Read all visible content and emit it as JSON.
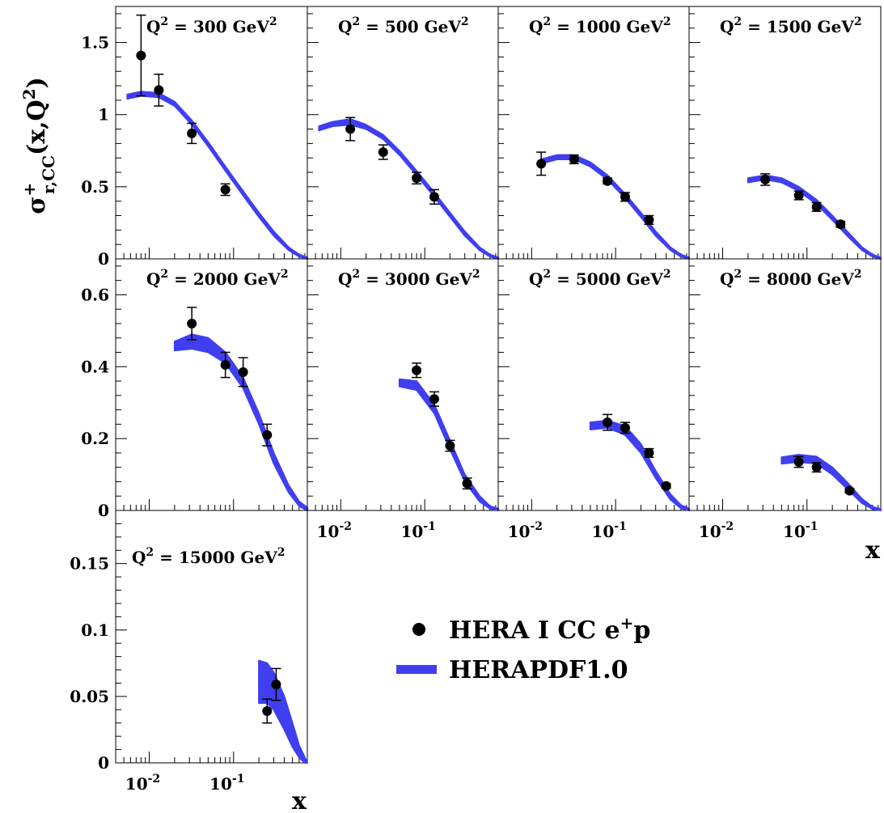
{
  "chart_data": [
    {
      "type": "scatter",
      "title": "Q<sup>2</sup> = 300 GeV<sup>2</sup>",
      "title_parts": {
        "pre": "Q",
        "sup1": "2",
        "mid": " = 300 GeV",
        "sup2": "2"
      },
      "xscale": "log",
      "xlim": [
        0.004,
        0.75
      ],
      "ylim": [
        0,
        1.75
      ],
      "yticks": [
        "0",
        "0.5",
        "1",
        "1.5"
      ],
      "ytick_values": [
        0,
        0.5,
        1,
        1.5
      ],
      "points": [
        {
          "x": 0.008,
          "y": 1.41,
          "err": 0.28
        },
        {
          "x": 0.013,
          "y": 1.17,
          "err": 0.11
        },
        {
          "x": 0.032,
          "y": 0.87,
          "err": 0.07
        },
        {
          "x": 0.08,
          "y": 0.48,
          "err": 0.04
        }
      ],
      "band": {
        "x": [
          0.0055,
          0.008,
          0.013,
          0.02,
          0.032,
          0.05,
          0.08,
          0.13,
          0.2,
          0.3,
          0.45,
          0.6,
          0.75
        ],
        "lo": [
          1.11,
          1.13,
          1.12,
          1.06,
          0.93,
          0.78,
          0.61,
          0.44,
          0.29,
          0.16,
          0.06,
          0.015,
          0.0
        ],
        "hi": [
          1.14,
          1.16,
          1.15,
          1.09,
          0.96,
          0.81,
          0.64,
          0.47,
          0.32,
          0.19,
          0.08,
          0.03,
          0.01
        ]
      }
    },
    {
      "type": "scatter",
      "title_parts": {
        "pre": "Q",
        "sup1": "2",
        "mid": " = 500 GeV",
        "sup2": "2"
      },
      "xscale": "log",
      "xlim": [
        0.004,
        0.75
      ],
      "ylim": [
        0,
        1.75
      ],
      "points": [
        {
          "x": 0.013,
          "y": 0.9,
          "err": 0.08
        },
        {
          "x": 0.032,
          "y": 0.74,
          "err": 0.05
        },
        {
          "x": 0.08,
          "y": 0.56,
          "err": 0.04
        },
        {
          "x": 0.13,
          "y": 0.43,
          "err": 0.05
        }
      ],
      "band": {
        "x": [
          0.0055,
          0.008,
          0.013,
          0.02,
          0.032,
          0.05,
          0.08,
          0.13,
          0.2,
          0.3,
          0.45,
          0.6,
          0.75
        ],
        "lo": [
          0.89,
          0.92,
          0.93,
          0.9,
          0.83,
          0.72,
          0.58,
          0.43,
          0.29,
          0.16,
          0.06,
          0.015,
          0.0
        ],
        "hi": [
          0.92,
          0.95,
          0.97,
          0.93,
          0.86,
          0.75,
          0.61,
          0.46,
          0.32,
          0.19,
          0.08,
          0.03,
          0.01
        ]
      }
    },
    {
      "type": "scatter",
      "title_parts": {
        "pre": "Q",
        "sup1": "2",
        "mid": " = 1000 GeV",
        "sup2": "2"
      },
      "xscale": "log",
      "xlim": [
        0.004,
        0.75
      ],
      "ylim": [
        0,
        1.75
      ],
      "points": [
        {
          "x": 0.013,
          "y": 0.66,
          "err": 0.08
        },
        {
          "x": 0.032,
          "y": 0.69,
          "err": 0.03
        },
        {
          "x": 0.08,
          "y": 0.54,
          "err": 0.02
        },
        {
          "x": 0.13,
          "y": 0.43,
          "err": 0.03
        },
        {
          "x": 0.25,
          "y": 0.27,
          "err": 0.03
        }
      ],
      "band": {
        "x": [
          0.013,
          0.02,
          0.032,
          0.05,
          0.08,
          0.13,
          0.2,
          0.3,
          0.45,
          0.6,
          0.75
        ],
        "lo": [
          0.66,
          0.69,
          0.69,
          0.64,
          0.55,
          0.42,
          0.29,
          0.16,
          0.06,
          0.015,
          0.0
        ],
        "hi": [
          0.69,
          0.72,
          0.72,
          0.67,
          0.58,
          0.45,
          0.32,
          0.19,
          0.08,
          0.03,
          0.01
        ]
      }
    },
    {
      "type": "scatter",
      "title_parts": {
        "pre": "Q",
        "sup1": "2",
        "mid": " = 1500 GeV",
        "sup2": "2"
      },
      "xscale": "log",
      "xlim": [
        0.004,
        0.75
      ],
      "ylim": [
        0,
        1.75
      ],
      "points": [
        {
          "x": 0.032,
          "y": 0.55,
          "err": 0.04
        },
        {
          "x": 0.08,
          "y": 0.44,
          "err": 0.03
        },
        {
          "x": 0.13,
          "y": 0.36,
          "err": 0.03
        },
        {
          "x": 0.25,
          "y": 0.24,
          "err": 0.02
        }
      ],
      "band": {
        "x": [
          0.02,
          0.032,
          0.05,
          0.08,
          0.13,
          0.2,
          0.3,
          0.45,
          0.6,
          0.75
        ],
        "lo": [
          0.53,
          0.55,
          0.53,
          0.47,
          0.38,
          0.27,
          0.16,
          0.06,
          0.015,
          0.0
        ],
        "hi": [
          0.56,
          0.58,
          0.56,
          0.5,
          0.41,
          0.3,
          0.19,
          0.08,
          0.03,
          0.01
        ]
      }
    },
    {
      "type": "scatter",
      "title_parts": {
        "pre": "Q",
        "sup1": "2",
        "mid": " = 2000 GeV",
        "sup2": "2"
      },
      "xscale": "log",
      "xlim": [
        0.004,
        0.75
      ],
      "ylim": [
        0,
        0.7
      ],
      "yticks": [
        "0",
        "0.2",
        "0.4",
        "0.6"
      ],
      "ytick_values": [
        0,
        0.2,
        0.4,
        0.6
      ],
      "points": [
        {
          "x": 0.032,
          "y": 0.52,
          "err": 0.045
        },
        {
          "x": 0.08,
          "y": 0.405,
          "err": 0.035
        },
        {
          "x": 0.13,
          "y": 0.385,
          "err": 0.04
        },
        {
          "x": 0.25,
          "y": 0.21,
          "err": 0.03
        }
      ],
      "band": {
        "x": [
          0.02,
          0.032,
          0.05,
          0.08,
          0.13,
          0.2,
          0.3,
          0.45,
          0.6,
          0.75
        ],
        "lo": [
          0.445,
          0.45,
          0.44,
          0.41,
          0.34,
          0.24,
          0.13,
          0.05,
          0.012,
          0.0
        ],
        "hi": [
          0.47,
          0.49,
          0.48,
          0.44,
          0.37,
          0.27,
          0.16,
          0.07,
          0.025,
          0.008
        ]
      }
    },
    {
      "type": "scatter",
      "title_parts": {
        "pre": "Q",
        "sup1": "2",
        "mid": " = 3000 GeV",
        "sup2": "2"
      },
      "xscale": "log",
      "xlim": [
        0.004,
        0.75
      ],
      "ylim": [
        0,
        0.7
      ],
      "points": [
        {
          "x": 0.08,
          "y": 0.39,
          "err": 0.02
        },
        {
          "x": 0.13,
          "y": 0.31,
          "err": 0.02
        },
        {
          "x": 0.2,
          "y": 0.18,
          "err": 0.015
        },
        {
          "x": 0.32,
          "y": 0.075,
          "err": 0.015
        }
      ],
      "band": {
        "x": [
          0.05,
          0.08,
          0.13,
          0.2,
          0.3,
          0.45,
          0.6,
          0.75
        ],
        "lo": [
          0.345,
          0.335,
          0.27,
          0.17,
          0.08,
          0.025,
          0.005,
          0.0
        ],
        "hi": [
          0.365,
          0.36,
          0.295,
          0.195,
          0.1,
          0.04,
          0.012,
          0.005
        ]
      }
    },
    {
      "type": "scatter",
      "title_parts": {
        "pre": "Q",
        "sup1": "2",
        "mid": " = 5000 GeV",
        "sup2": "2"
      },
      "xscale": "log",
      "xlim": [
        0.004,
        0.75
      ],
      "ylim": [
        0,
        0.7
      ],
      "points": [
        {
          "x": 0.08,
          "y": 0.245,
          "err": 0.022
        },
        {
          "x": 0.13,
          "y": 0.23,
          "err": 0.015
        },
        {
          "x": 0.25,
          "y": 0.16,
          "err": 0.012
        },
        {
          "x": 0.4,
          "y": 0.068,
          "err": 0.006
        }
      ],
      "band": {
        "x": [
          0.05,
          0.08,
          0.13,
          0.2,
          0.3,
          0.45,
          0.6,
          0.75
        ],
        "lo": [
          0.225,
          0.23,
          0.21,
          0.16,
          0.09,
          0.03,
          0.006,
          0.0
        ],
        "hi": [
          0.245,
          0.25,
          0.235,
          0.185,
          0.11,
          0.045,
          0.015,
          0.005
        ]
      }
    },
    {
      "type": "scatter",
      "title_parts": {
        "pre": "Q",
        "sup1": "2",
        "mid": " = 8000 GeV",
        "sup2": "2"
      },
      "xscale": "log",
      "xlim": [
        0.004,
        0.75
      ],
      "ylim": [
        0,
        0.7
      ],
      "points": [
        {
          "x": 0.08,
          "y": 0.135,
          "err": 0.015
        },
        {
          "x": 0.13,
          "y": 0.12,
          "err": 0.013
        },
        {
          "x": 0.32,
          "y": 0.055,
          "err": 0.006
        }
      ],
      "band": {
        "x": [
          0.05,
          0.08,
          0.13,
          0.2,
          0.3,
          0.45,
          0.6,
          0.75
        ],
        "lo": [
          0.13,
          0.135,
          0.13,
          0.1,
          0.06,
          0.02,
          0.004,
          0.0
        ],
        "hi": [
          0.148,
          0.155,
          0.15,
          0.12,
          0.078,
          0.032,
          0.01,
          0.004
        ]
      }
    },
    {
      "type": "scatter",
      "title_parts": {
        "pre": "Q",
        "sup1": "2",
        "mid": " = 15000 GeV",
        "sup2": "2"
      },
      "xscale": "log",
      "xlim": [
        0.004,
        0.75
      ],
      "ylim": [
        0,
        0.19
      ],
      "yticks": [
        "0",
        "0.05",
        "0.1",
        "0.15"
      ],
      "ytick_values": [
        0,
        0.05,
        0.1,
        0.15
      ],
      "points": [
        {
          "x": 0.25,
          "y": 0.039,
          "err": 0.009
        },
        {
          "x": 0.32,
          "y": 0.059,
          "err": 0.012
        }
      ],
      "band": {
        "x": [
          0.2,
          0.25,
          0.3,
          0.4,
          0.5,
          0.6,
          0.7,
          0.75
        ],
        "lo": [
          0.045,
          0.045,
          0.04,
          0.025,
          0.012,
          0.004,
          0.0,
          0.0
        ],
        "hi": [
          0.077,
          0.075,
          0.068,
          0.05,
          0.03,
          0.013,
          0.004,
          0.0
        ]
      }
    }
  ],
  "axes": {
    "ylabel": {
      "sigma": "σ",
      "sup": "+",
      "sub": "r,CC",
      "rest": "(x,Q",
      "sup2": "2",
      "close": ")"
    },
    "xlabel": "x",
    "xticks": [
      {
        "value": 0.01,
        "base": "10",
        "exp": "-2"
      },
      {
        "value": 0.1,
        "base": "10",
        "exp": "-1"
      }
    ]
  },
  "legend": {
    "data_label": {
      "pre": "HERA I CC e",
      "sup": "+",
      "post": "p"
    },
    "band_label": "HERAPDF1.0",
    "placement": "bottom-right"
  },
  "colors": {
    "band": "#3f3ff0",
    "marker": "#000000",
    "axes": "#000000"
  }
}
